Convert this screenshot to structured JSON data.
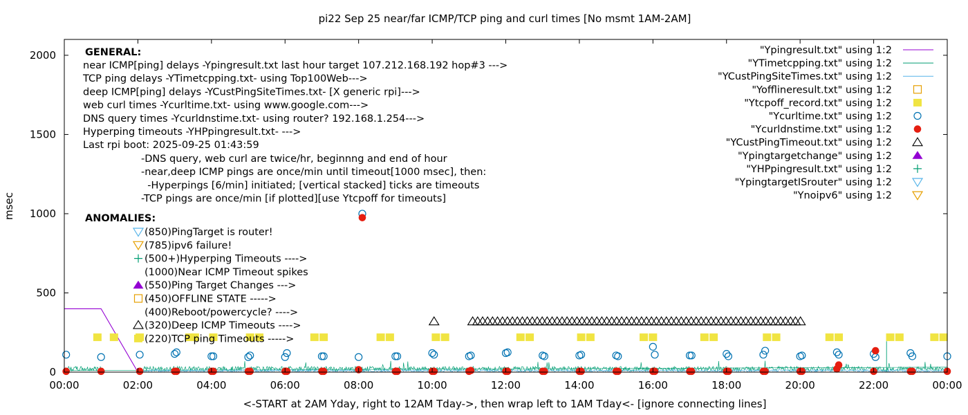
{
  "chart_data": {
    "type": "scatter",
    "title": "pi22 Sep 25  near/far ICMP/TCP ping and curl times [No msmt 1AM-2AM]",
    "xlabel": "<-START at 2AM Yday, right to 12AM Tday->, then wrap left to 1AM Tday<- [ignore connecting lines]",
    "ylabel": "msec",
    "xlim": [
      0,
      24
    ],
    "ylim": [
      0,
      2100
    ],
    "grid": false,
    "legend_position": "top-right",
    "x_ticks": [
      {
        "v": 0,
        "label": "00:00"
      },
      {
        "v": 2,
        "label": "02:00"
      },
      {
        "v": 4,
        "label": "04:00"
      },
      {
        "v": 6,
        "label": "06:00"
      },
      {
        "v": 8,
        "label": "08:00"
      },
      {
        "v": 10,
        "label": "10:00"
      },
      {
        "v": 12,
        "label": "12:00"
      },
      {
        "v": 14,
        "label": "14:00"
      },
      {
        "v": 16,
        "label": "16:00"
      },
      {
        "v": 18,
        "label": "18:00"
      },
      {
        "v": 20,
        "label": "20:00"
      },
      {
        "v": 22,
        "label": "22:00"
      },
      {
        "v": 24,
        "label": "00:00"
      }
    ],
    "y_ticks": [
      {
        "v": 0,
        "label": "0"
      },
      {
        "v": 500,
        "label": "500"
      },
      {
        "v": 1000,
        "label": "1000"
      },
      {
        "v": 1500,
        "label": "1500"
      },
      {
        "v": 2000,
        "label": "2000"
      }
    ],
    "legend": [
      {
        "label": "\"Ypingresult.txt\" using 1:2",
        "marker": "line",
        "color": "#9400d3"
      },
      {
        "label": "\"YTimetcpping.txt\" using 1:2",
        "marker": "line",
        "color": "#009e73"
      },
      {
        "label": "\"YCustPingSiteTimes.txt\" using 1:2",
        "marker": "line",
        "color": "#56b4e9"
      },
      {
        "label": "\"Yofflineresult.txt\" using 1:2",
        "marker": "open-square",
        "color": "#e69f00"
      },
      {
        "label": "\"Ytcpoff_record.txt\" using 1:2",
        "marker": "filled-square",
        "color": "#f0e442"
      },
      {
        "label": "\"Ycurltime.txt\" using 1:2",
        "marker": "open-circle",
        "color": "#0072b2"
      },
      {
        "label": "\"Ycurldnstime.txt\" using 1:2",
        "marker": "filled-circle",
        "color": "#e51e10"
      },
      {
        "label": "\"YCustPingTimeout.txt\" using 1:2",
        "marker": "open-triangle",
        "color": "#000000"
      },
      {
        "label": "\"Ypingtargetchange\" using 1:2",
        "marker": "filled-triangle",
        "color": "#9400d3"
      },
      {
        "label": "\"YHPpingresult.txt\" using 1:2",
        "marker": "plus",
        "color": "#009e73"
      },
      {
        "label": "\"YpingtargetISrouter\" using 1:2",
        "marker": "open-down-triangle",
        "color": "#56b4e9"
      },
      {
        "label": "\"Ynoipv6\" using 1:2",
        "marker": "open-down-triangle",
        "color": "#e69f00"
      }
    ],
    "annotations": {
      "general_header": "GENERAL:",
      "general_lines": [
        "near ICMP[ping] delays -Ypingresult.txt last hour target 107.212.168.192 hop#3 --->",
        "TCP ping delays -YTimetcpping.txt- using Top100Web--->",
        "deep ICMP[ping] delays -YCustPingSiteTimes.txt- [X generic rpi]--->",
        "web curl times -Ycurltime.txt- using www.google.com--->",
        "DNS query times -Ycurldnstime.txt- using router? 192.168.1.254--->",
        "Hyperping timeouts -YHPpingresult.txt- --->",
        "Last rpi boot: 2025-09-25 01:43:59"
      ],
      "notes": [
        "-DNS query, web curl are twice/hr, beginnng and end of hour",
        "-near,deep ICMP pings are once/min until timeout[1000 msec], then:",
        "  -Hyperpings [6/min] initiated; [vertical stacked] ticks are timeouts",
        "-TCP pings are once/min [if plotted][use Ytcpoff for timeouts]"
      ],
      "anomalies_header": "ANOMALIES:",
      "anomalies": [
        {
          "marker": "open-down-triangle",
          "color": "#56b4e9",
          "text": "(850)PingTarget is router!"
        },
        {
          "marker": "open-down-triangle",
          "color": "#e69f00",
          "text": "(785)ipv6 failure!"
        },
        {
          "marker": "plus",
          "color": "#009e73",
          "text": "(500+)Hyperping Timeouts ---->"
        },
        {
          "marker": "none",
          "color": "",
          "text": "(1000)Near ICMP Timeout spikes"
        },
        {
          "marker": "filled-triangle",
          "color": "#9400d3",
          "text": "(550)Ping Target Changes --->"
        },
        {
          "marker": "open-square",
          "color": "#e69f00",
          "text": "(450)OFFLINE STATE ----->"
        },
        {
          "marker": "none",
          "color": "",
          "text": "(400)Reboot/powercycle? ---->"
        },
        {
          "marker": "open-triangle",
          "color": "#000000",
          "text": "(320)Deep ICMP Timeouts ---->"
        },
        {
          "marker": "filled-square",
          "color": "#f0e442",
          "text": "(220)TCP ping Timeouts ----->"
        }
      ]
    },
    "series": {
      "ping_near": [
        [
          0,
          400
        ],
        [
          1,
          400
        ],
        [
          2,
          0
        ],
        [
          24,
          0
        ]
      ],
      "tcp_off": [
        0.9,
        1.35,
        2.05,
        3.4,
        3.55,
        4.05,
        5.05,
        5.3,
        6.8,
        7.05,
        8.6,
        8.85,
        10.1,
        10.35,
        12.4,
        12.65,
        14.05,
        14.3,
        15.75,
        16.0,
        17.4,
        17.65,
        19.1,
        19.35,
        20.8,
        21.05,
        22.45,
        22.7,
        23.65,
        23.9
      ],
      "tcp_off_y": 220,
      "cust_timeout_points": [
        10.05
      ],
      "cust_timeout_range": [
        11.1,
        20.1
      ],
      "cust_timeout_step": 0.135,
      "cust_timeout_y": 320,
      "curl": [
        [
          0.05,
          110
        ],
        [
          1.0,
          95
        ],
        [
          2.05,
          110
        ],
        [
          3.0,
          115
        ],
        [
          3.05,
          125
        ],
        [
          4.0,
          100
        ],
        [
          4.05,
          100
        ],
        [
          5.0,
          95
        ],
        [
          5.05,
          105
        ],
        [
          6.0,
          95
        ],
        [
          6.05,
          120
        ],
        [
          7.0,
          100
        ],
        [
          7.05,
          100
        ],
        [
          8.0,
          95
        ],
        [
          8.1,
          1000
        ],
        [
          9.0,
          100
        ],
        [
          9.05,
          100
        ],
        [
          10.0,
          120
        ],
        [
          10.05,
          110
        ],
        [
          11.0,
          100
        ],
        [
          11.05,
          105
        ],
        [
          12.0,
          120
        ],
        [
          12.05,
          125
        ],
        [
          13.0,
          105
        ],
        [
          13.05,
          100
        ],
        [
          14.0,
          105
        ],
        [
          14.05,
          110
        ],
        [
          15.0,
          105
        ],
        [
          15.05,
          100
        ],
        [
          16.0,
          160
        ],
        [
          16.05,
          110
        ],
        [
          17.0,
          105
        ],
        [
          17.05,
          105
        ],
        [
          18.0,
          115
        ],
        [
          18.05,
          100
        ],
        [
          19.0,
          110
        ],
        [
          19.05,
          135
        ],
        [
          20.0,
          100
        ],
        [
          20.05,
          105
        ],
        [
          21.0,
          125
        ],
        [
          21.05,
          110
        ],
        [
          22.0,
          115
        ],
        [
          22.05,
          95
        ],
        [
          23.0,
          120
        ],
        [
          23.05,
          100
        ],
        [
          24.0,
          100
        ]
      ],
      "dns": [
        [
          0.05,
          5
        ],
        [
          1.0,
          5
        ],
        [
          2.05,
          5
        ],
        [
          3.0,
          5
        ],
        [
          3.05,
          5
        ],
        [
          4.0,
          5
        ],
        [
          4.05,
          5
        ],
        [
          5.0,
          5
        ],
        [
          5.05,
          5
        ],
        [
          6.0,
          5
        ],
        [
          6.05,
          5
        ],
        [
          7.0,
          5
        ],
        [
          7.05,
          5
        ],
        [
          8.0,
          15
        ],
        [
          8.1,
          975
        ],
        [
          9.0,
          5
        ],
        [
          9.05,
          5
        ],
        [
          10.0,
          5
        ],
        [
          10.05,
          5
        ],
        [
          11.0,
          5
        ],
        [
          11.05,
          10
        ],
        [
          12.0,
          5
        ],
        [
          12.05,
          5
        ],
        [
          13.0,
          5
        ],
        [
          13.05,
          5
        ],
        [
          14.0,
          5
        ],
        [
          14.05,
          5
        ],
        [
          15.0,
          5
        ],
        [
          15.05,
          5
        ],
        [
          16.0,
          5
        ],
        [
          16.05,
          5
        ],
        [
          17.0,
          5
        ],
        [
          17.05,
          5
        ],
        [
          18.0,
          5
        ],
        [
          18.05,
          5
        ],
        [
          19.0,
          5
        ],
        [
          19.05,
          5
        ],
        [
          20.0,
          5
        ],
        [
          20.05,
          5
        ],
        [
          21.0,
          20
        ],
        [
          21.05,
          45
        ],
        [
          22.0,
          5
        ],
        [
          22.05,
          135
        ],
        [
          23.0,
          5
        ],
        [
          23.05,
          5
        ],
        [
          24.0,
          5
        ]
      ]
    }
  }
}
